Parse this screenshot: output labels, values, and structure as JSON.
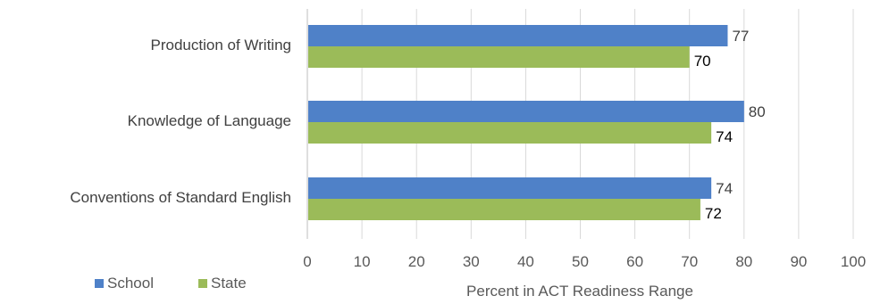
{
  "chart_data": {
    "type": "bar",
    "orientation": "horizontal",
    "categories": [
      "Production of Writing",
      "Knowledge of Language",
      "Conventions of Standard English"
    ],
    "series": [
      {
        "name": "School",
        "values": [
          77,
          80,
          74
        ],
        "color": "#4f81c8"
      },
      {
        "name": "State",
        "values": [
          70,
          74,
          72
        ],
        "color": "#9bbb59"
      }
    ],
    "xlabel": "Percent in ACT Readiness Range",
    "ylabel": "",
    "xlim": [
      0,
      100
    ],
    "xticks": [
      0,
      10,
      20,
      30,
      40,
      50,
      60,
      70,
      80,
      90,
      100
    ],
    "grid": true,
    "legend": "bottom-left",
    "data_labels": true
  }
}
